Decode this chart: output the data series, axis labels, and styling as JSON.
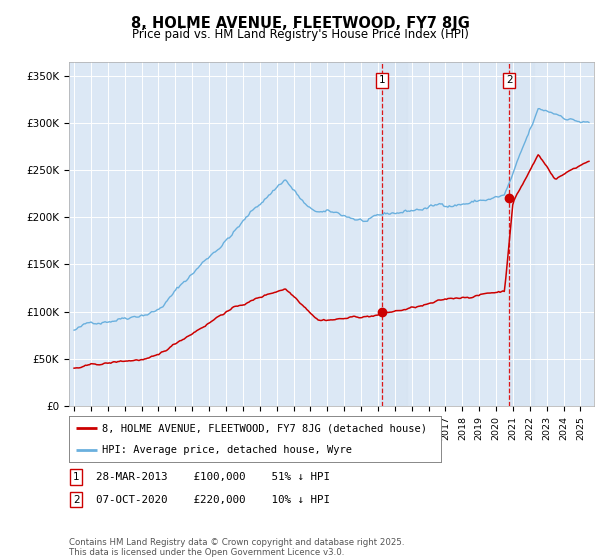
{
  "title": "8, HOLME AVENUE, FLEETWOOD, FY7 8JG",
  "subtitle": "Price paid vs. HM Land Registry's House Price Index (HPI)",
  "hpi_color": "#6ab0de",
  "price_color": "#cc0000",
  "background_color": "#ffffff",
  "plot_bg_color": "#dce8f5",
  "grid_color": "#ffffff",
  "ylabel_ticks": [
    "£0",
    "£50K",
    "£100K",
    "£150K",
    "£200K",
    "£250K",
    "£300K",
    "£350K"
  ],
  "ytick_values": [
    0,
    50000,
    100000,
    150000,
    200000,
    250000,
    300000,
    350000
  ],
  "ylim": [
    0,
    365000
  ],
  "transaction1_date": 2013.24,
  "transaction1_price": 100000,
  "transaction2_date": 2020.77,
  "transaction2_price": 220000,
  "legend_line1": "8, HOLME AVENUE, FLEETWOOD, FY7 8JG (detached house)",
  "legend_line2": "HPI: Average price, detached house, Wyre",
  "annotation1_text": "28-MAR-2013    £100,000    51% ↓ HPI",
  "annotation2_text": "07-OCT-2020    £220,000    10% ↓ HPI",
  "footer": "Contains HM Land Registry data © Crown copyright and database right 2025.\nThis data is licensed under the Open Government Licence v3.0."
}
